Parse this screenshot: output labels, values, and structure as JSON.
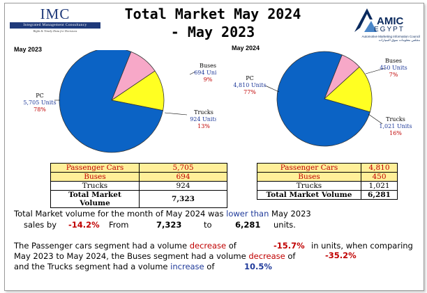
{
  "header": {
    "title_line1": "Total Market May 2024",
    "title_line2": "- May 2023",
    "imc_name": "IMC",
    "imc_full": "Integrated Management Consultancy",
    "imc_tagline": "Right & Timely Data for Decisions",
    "amic_name": "AMIC",
    "amic_country": "EGYPT",
    "amic_sub": "Automotive Marketing Information Council",
    "amic_sub_ar": "مجلس معلومات سوق السيارات"
  },
  "colors": {
    "pc": "#0b63c5",
    "buses": "#f7a8c8",
    "trucks": "#ffff22"
  },
  "chart_data": [
    {
      "type": "pie",
      "title": "May 2023",
      "slices": [
        {
          "name": "PC",
          "units_label": "5,705 Units",
          "pct_label": "78%",
          "value": 5705
        },
        {
          "name": "Buses",
          "units_label": "694 Units",
          "pct_label": "9%",
          "value": 694
        },
        {
          "name": "Trucks",
          "units_label": "924 Units",
          "pct_label": "13%",
          "value": 924
        }
      ]
    },
    {
      "type": "pie",
      "title": "May 2024",
      "slices": [
        {
          "name": "PC",
          "units_label": "4,810 Units",
          "pct_label": "77%",
          "value": 4810
        },
        {
          "name": "Buses",
          "units_label": "450 Units",
          "pct_label": "7%",
          "value": 450
        },
        {
          "name": "Trucks",
          "units_label": "1,021 Units",
          "pct_label": "16%",
          "value": 1021
        }
      ]
    }
  ],
  "tables": {
    "may2023": {
      "rows": [
        {
          "label": "Passenger Cars",
          "value": "5,705"
        },
        {
          "label": "Buses",
          "value": "694"
        },
        {
          "label": "Trucks",
          "value": "924"
        },
        {
          "label": "Total Market Volume",
          "value": "7,323"
        }
      ]
    },
    "may2024": {
      "rows": [
        {
          "label": "Passenger Cars",
          "value": "4,810"
        },
        {
          "label": "Buses",
          "value": "450"
        },
        {
          "label": "Trucks",
          "value": "1,021"
        },
        {
          "label": "Total Market Volume",
          "value": "6,281"
        }
      ]
    }
  },
  "summary": {
    "line1_a": "Total Market volume for the month of May 2024 was",
    "line1_b": "lower than",
    "line1_c": "May 2023",
    "line2_a": "sales by",
    "line2_pct": "-14.2%",
    "line2_from": "From",
    "line2_v1": "7,323",
    "line2_to": "to",
    "line2_v2": "6,281",
    "line2_units": "units."
  },
  "segments": {
    "l1_a": "The Passenger cars segment had a volume",
    "l1_b": "decrease",
    "l1_c": "of",
    "l1_pct": "-15.7%",
    "l1_d": "in units, when comparing",
    "l2_a": "May 2023 to May 2024, the Buses segment had a volume",
    "l2_b": "decrease",
    "l2_c": "of",
    "l2_pct": "-35.2%",
    "l3_a": "and the Trucks segment had a volume",
    "l3_b": "increase",
    "l3_c": "of",
    "l3_pct": "10.5%"
  }
}
